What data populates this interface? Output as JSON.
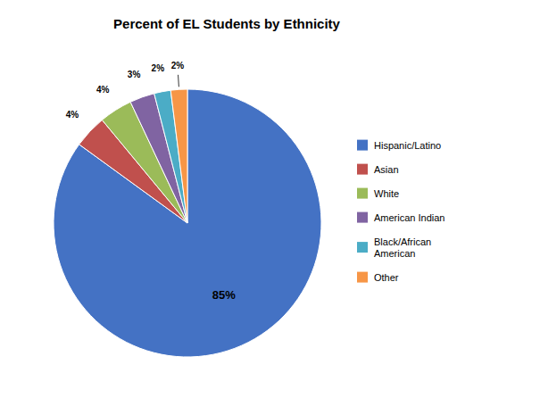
{
  "chart_data": {
    "type": "pie",
    "title": "Percent of EL Students by Ethnicity",
    "categories": [
      "Hispanic/Latino",
      "Asian",
      "White",
      "American Indian",
      "Black/African\nAmerican",
      "Other"
    ],
    "values": [
      85,
      4,
      4,
      3,
      2,
      2
    ],
    "value_labels": [
      "85%",
      "4%",
      "4%",
      "3%",
      "2%",
      "2%"
    ],
    "colors": [
      "#4472C4",
      "#C0504D",
      "#9BBB59",
      "#8064A2",
      "#4BACC6",
      "#F79646"
    ],
    "data_labels": true,
    "legend": "right"
  }
}
